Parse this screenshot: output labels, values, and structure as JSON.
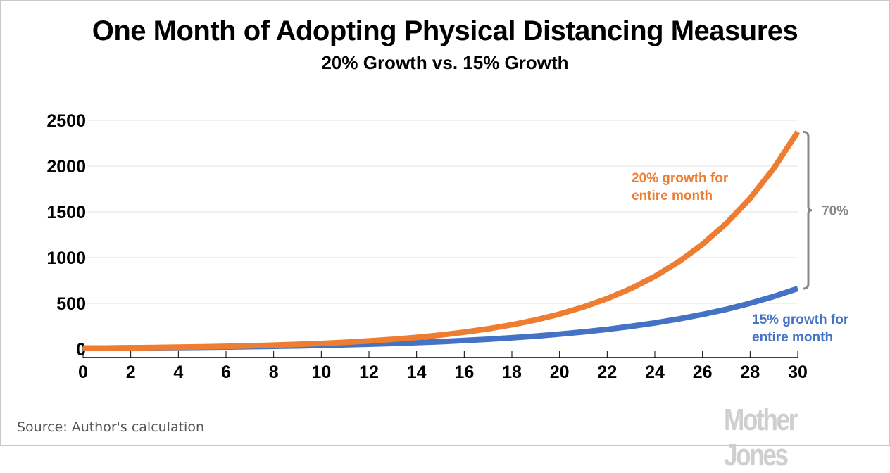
{
  "chart_data": {
    "type": "line",
    "title": "One Month of Adopting Physical Distancing Measures",
    "subtitle": "20% Growth vs. 15% Growth",
    "xlabel": "",
    "ylabel": "",
    "xlim": [
      0,
      30
    ],
    "ylim": [
      0,
      2500
    ],
    "grid": true,
    "x_ticks": [
      "0",
      "2",
      "4",
      "6",
      "8",
      "10",
      "12",
      "14",
      "16",
      "18",
      "20",
      "22",
      "24",
      "26",
      "28",
      "30"
    ],
    "y_ticks": [
      "0",
      "500",
      "1000",
      "1500",
      "2000",
      "2500"
    ],
    "x": [
      0,
      1,
      2,
      3,
      4,
      5,
      6,
      7,
      8,
      9,
      10,
      11,
      12,
      13,
      14,
      15,
      16,
      17,
      18,
      19,
      20,
      21,
      22,
      23,
      24,
      25,
      26,
      27,
      28,
      29,
      30
    ],
    "series": [
      {
        "name": "20% growth for entire month",
        "label_lines": [
          "20% growth for",
          "entire month"
        ],
        "color": "#ef7d31",
        "values": [
          10,
          12,
          14,
          17,
          21,
          25,
          30,
          36,
          43,
          52,
          62,
          74,
          89,
          107,
          128,
          154,
          185,
          222,
          266,
          319,
          383,
          460,
          552,
          662,
          795,
          954,
          1145,
          1374,
          1648,
          1978,
          2374
        ]
      },
      {
        "name": "15% growth for entire month",
        "label_lines": [
          "15% growth for",
          "entire month"
        ],
        "color": "#4472c4",
        "values": [
          10,
          12,
          13,
          15,
          17,
          20,
          23,
          27,
          31,
          35,
          40,
          47,
          54,
          62,
          71,
          81,
          94,
          108,
          124,
          142,
          164,
          188,
          216,
          249,
          286,
          329,
          379,
          435,
          501,
          576,
          662
        ]
      }
    ],
    "annotation": {
      "text": "70%",
      "color": "#888888"
    }
  },
  "source": "Source: Author's calculation",
  "logo": "Mother Jones"
}
